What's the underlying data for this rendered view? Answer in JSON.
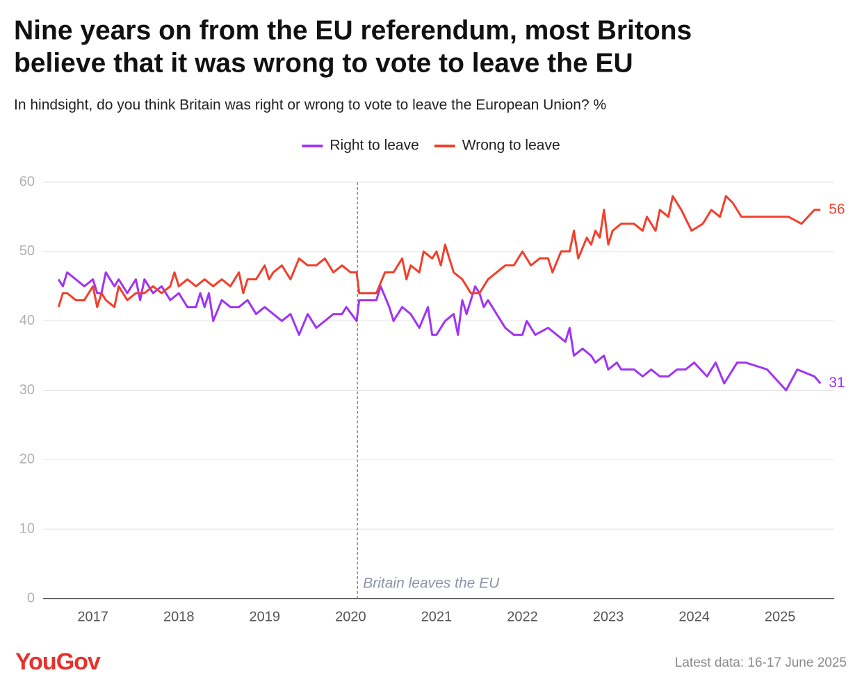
{
  "chart_data": {
    "type": "line",
    "title": [
      "Nine years on from the EU referendum, most Britons",
      "believe that it was wrong to vote to leave the EU"
    ],
    "subtitle": "In hindsight, do you think Britain was right or wrong to vote to leave the European Union? %",
    "xlim": [
      2016.42,
      2025.63
    ],
    "xticks": [
      2017,
      2018,
      2019,
      2020,
      2021,
      2022,
      2023,
      2024,
      2025
    ],
    "ylim": [
      0,
      60
    ],
    "yticks": [
      0,
      10,
      20,
      30,
      40,
      50,
      60
    ],
    "grid": true,
    "legend": "top",
    "annotations": [
      {
        "x": 2020.08,
        "text": "Britain leaves the EU"
      }
    ],
    "series": [
      {
        "name": "Right to leave",
        "color": "#a033f5",
        "x": [
          2016.6,
          2016.65,
          2016.7,
          2016.8,
          2016.9,
          2017.0,
          2017.05,
          2017.1,
          2017.15,
          2017.25,
          2017.3,
          2017.4,
          2017.5,
          2017.55,
          2017.6,
          2017.7,
          2017.8,
          2017.9,
          2018.0,
          2018.1,
          2018.2,
          2018.25,
          2018.3,
          2018.35,
          2018.4,
          2018.5,
          2018.6,
          2018.7,
          2018.8,
          2018.9,
          2019.0,
          2019.1,
          2019.2,
          2019.3,
          2019.4,
          2019.5,
          2019.6,
          2019.7,
          2019.8,
          2019.9,
          2019.95,
          2020.07,
          2020.1,
          2020.3,
          2020.35,
          2020.45,
          2020.5,
          2020.6,
          2020.7,
          2020.8,
          2020.9,
          2020.95,
          2021.0,
          2021.1,
          2021.2,
          2021.25,
          2021.3,
          2021.35,
          2021.45,
          2021.5,
          2021.55,
          2021.6,
          2021.7,
          2021.8,
          2021.9,
          2022.0,
          2022.05,
          2022.15,
          2022.3,
          2022.4,
          2022.5,
          2022.55,
          2022.6,
          2022.7,
          2022.8,
          2022.85,
          2022.95,
          2023.0,
          2023.1,
          2023.15,
          2023.3,
          2023.4,
          2023.5,
          2023.6,
          2023.7,
          2023.8,
          2023.9,
          2024.0,
          2024.15,
          2024.25,
          2024.35,
          2024.5,
          2024.6,
          2024.85,
          2025.07,
          2025.2,
          2025.4,
          2025.47
        ],
        "values": [
          46,
          45,
          47,
          46,
          45,
          46,
          44,
          44,
          47,
          45,
          46,
          44,
          46,
          43,
          46,
          44,
          45,
          43,
          44,
          42,
          42,
          44,
          42,
          44,
          40,
          43,
          42,
          42,
          43,
          41,
          42,
          41,
          40,
          41,
          38,
          41,
          39,
          40,
          41,
          41,
          42,
          40,
          43,
          43,
          45,
          42,
          40,
          42,
          41,
          39,
          42,
          38,
          38,
          40,
          41,
          38,
          43,
          41,
          45,
          44,
          42,
          43,
          41,
          39,
          38,
          38,
          40,
          38,
          39,
          38,
          37,
          39,
          35,
          36,
          35,
          34,
          35,
          33,
          34,
          33,
          33,
          32,
          33,
          32,
          32,
          33,
          33,
          34,
          32,
          34,
          31,
          34,
          34,
          33,
          30,
          33,
          32,
          31
        ],
        "value_labels": {
          "97": "31"
        }
      },
      {
        "name": "Wrong to leave",
        "color": "#f23f2c",
        "x": [
          2016.6,
          2016.65,
          2016.7,
          2016.8,
          2016.9,
          2017.0,
          2017.05,
          2017.1,
          2017.15,
          2017.25,
          2017.3,
          2017.4,
          2017.5,
          2017.6,
          2017.7,
          2017.8,
          2017.9,
          2017.95,
          2018.0,
          2018.1,
          2018.2,
          2018.3,
          2018.4,
          2018.5,
          2018.6,
          2018.7,
          2018.75,
          2018.8,
          2018.9,
          2019.0,
          2019.05,
          2019.1,
          2019.2,
          2019.3,
          2019.4,
          2019.5,
          2019.6,
          2019.7,
          2019.8,
          2019.9,
          2020.0,
          2020.07,
          2020.1,
          2020.3,
          2020.4,
          2020.5,
          2020.6,
          2020.65,
          2020.7,
          2020.8,
          2020.85,
          2020.95,
          2021.0,
          2021.05,
          2021.1,
          2021.15,
          2021.2,
          2021.3,
          2021.4,
          2021.5,
          2021.6,
          2021.7,
          2021.8,
          2021.9,
          2022.0,
          2022.1,
          2022.2,
          2022.3,
          2022.35,
          2022.45,
          2022.55,
          2022.6,
          2022.65,
          2022.75,
          2022.8,
          2022.85,
          2022.9,
          2022.95,
          2023.0,
          2023.05,
          2023.15,
          2023.3,
          2023.4,
          2023.45,
          2023.55,
          2023.6,
          2023.7,
          2023.75,
          2023.85,
          2023.97,
          2024.1,
          2024.2,
          2024.3,
          2024.37,
          2024.45,
          2024.55,
          2024.9,
          2025.1,
          2025.25,
          2025.4,
          2025.47
        ],
        "values": [
          42,
          44,
          44,
          43,
          43,
          45,
          42,
          44,
          43,
          42,
          45,
          43,
          44,
          44,
          45,
          44,
          45,
          47,
          45,
          46,
          45,
          46,
          45,
          46,
          45,
          47,
          44,
          46,
          46,
          48,
          46,
          47,
          48,
          46,
          49,
          48,
          48,
          49,
          47,
          48,
          47,
          47,
          44,
          44,
          47,
          47,
          49,
          46,
          48,
          47,
          50,
          49,
          50,
          48,
          51,
          49,
          47,
          46,
          44,
          44,
          46,
          47,
          48,
          48,
          50,
          48,
          49,
          49,
          47,
          50,
          50,
          53,
          49,
          52,
          51,
          53,
          52,
          56,
          51,
          53,
          54,
          54,
          53,
          55,
          53,
          56,
          55,
          58,
          56,
          53,
          54,
          56,
          55,
          58,
          57,
          55,
          55,
          55,
          54,
          56,
          56
        ],
        "value_labels": {
          "100": "56"
        }
      }
    ],
    "source": "Latest data: 16-17 June 2025",
    "logo": "YouGov"
  }
}
